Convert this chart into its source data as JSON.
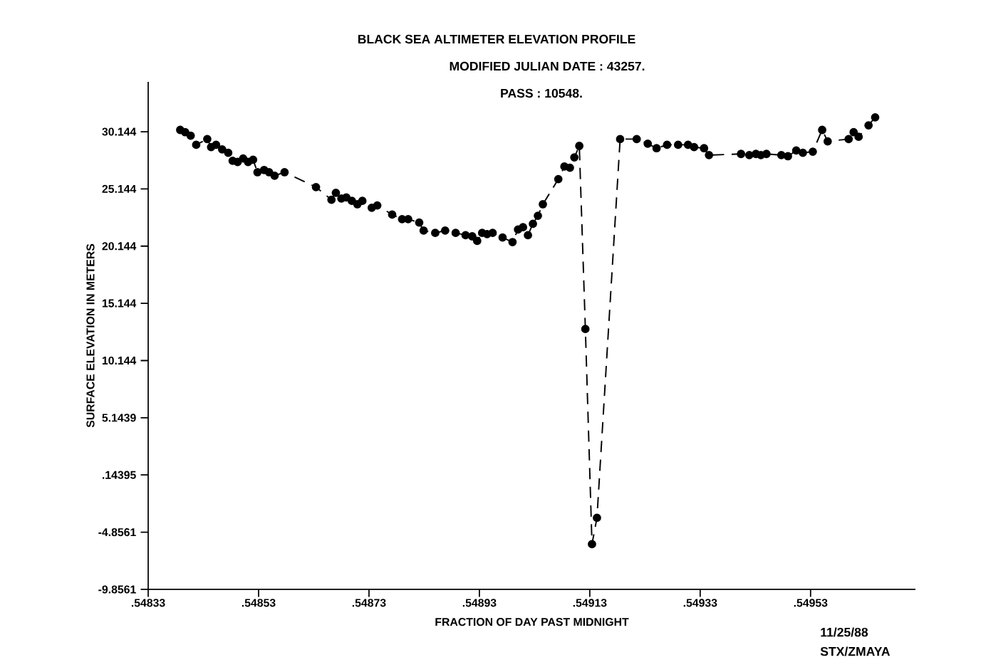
{
  "chart_data": {
    "type": "line",
    "title": "BLACK SEA ALTIMETER ELEVATION PROFILE",
    "subtitle": "MODIFIED JULIAN DATE :     43257.",
    "xlabel": "FRACTION OF DAY PAST MIDNIGHT",
    "ylabel": "SURFACE ELEVATION IN METERS",
    "annotations": [
      "PASS :    10548.",
      "11/25/88",
      "STX/ZMAYA"
    ],
    "x": [
      0.548388,
      0.548397,
      0.548407,
      0.548417,
      0.548437,
      0.548444,
      0.548453,
      0.548464,
      0.548475,
      0.548483,
      0.548492,
      0.548502,
      0.548511,
      0.54852,
      0.548528,
      0.54854,
      0.548549,
      0.548559,
      0.548577,
      0.548634,
      0.548662,
      0.54867,
      0.54868,
      0.548689,
      0.548699,
      0.548709,
      0.548718,
      0.548735,
      0.548745,
      0.548772,
      0.54879,
      0.548801,
      0.548821,
      0.548829,
      0.54885,
      0.548868,
      0.548887,
      0.548905,
      0.548917,
      0.548926,
      0.548935,
      0.548944,
      0.548954,
      0.548972,
      0.54899,
      0.549,
      0.549009,
      0.549018,
      0.549027,
      0.549036,
      0.549045,
      0.549073,
      0.549084,
      0.549094,
      0.549102,
      0.549111,
      0.549122,
      0.549134,
      0.549143,
      0.549185,
      0.549215,
      0.549235,
      0.549251,
      0.54927,
      0.54929,
      0.549308,
      0.549319,
      0.549337,
      0.549346,
      0.549404,
      0.549419,
      0.549431,
      0.54944,
      0.54945,
      0.549477,
      0.549489,
      0.549504,
      0.549516,
      0.549534,
      0.549551,
      0.549561,
      0.549599,
      0.549608,
      0.549617,
      0.549635,
      0.549647
    ],
    "values": [
      30.3,
      30.1,
      29.8,
      29.0,
      29.5,
      28.8,
      29.0,
      28.6,
      28.3,
      27.6,
      27.5,
      27.8,
      27.5,
      27.7,
      26.6,
      26.8,
      26.6,
      26.3,
      26.6,
      25.3,
      24.2,
      24.8,
      24.3,
      24.4,
      24.1,
      23.8,
      24.1,
      23.5,
      23.7,
      22.9,
      22.5,
      22.5,
      22.2,
      21.5,
      21.3,
      21.5,
      21.3,
      21.1,
      21.0,
      20.6,
      21.3,
      21.2,
      21.3,
      20.9,
      20.5,
      21.6,
      21.8,
      21.1,
      22.1,
      22.8,
      23.8,
      26.0,
      27.1,
      27.0,
      27.9,
      28.9,
      12.9,
      -5.9,
      -3.6,
      29.5,
      29.5,
      29.1,
      28.7,
      29.0,
      29.0,
      29.0,
      28.8,
      28.7,
      28.1,
      28.2,
      28.1,
      28.2,
      28.1,
      28.2,
      28.1,
      28.0,
      28.5,
      28.3,
      28.4,
      30.3,
      29.3,
      29.5,
      30.1,
      29.7,
      30.7,
      31.4
    ],
    "color": "#000000",
    "marker": "circle",
    "line_style": "dashed",
    "xlim": [
      0.54833,
      0.54972
    ],
    "xticks": [
      {
        "value": 0.54833,
        "label": ".54833"
      },
      {
        "value": 0.54853,
        "label": ".54853"
      },
      {
        "value": 0.54873,
        "label": ".54873"
      },
      {
        "value": 0.54893,
        "label": ".54893"
      },
      {
        "value": 0.54913,
        "label": ".54913"
      },
      {
        "value": 0.54933,
        "label": ".54933"
      },
      {
        "value": 0.54953,
        "label": ".54953"
      }
    ],
    "ylim": [
      -9.8561,
      34.5
    ],
    "yticks": [
      -9.8561,
      -4.8561,
      {
        "value": 0.14395,
        "label": ".14395"
      },
      5.1439,
      10.144,
      15.144,
      20.144,
      25.144,
      30.144
    ],
    "grid": false
  }
}
